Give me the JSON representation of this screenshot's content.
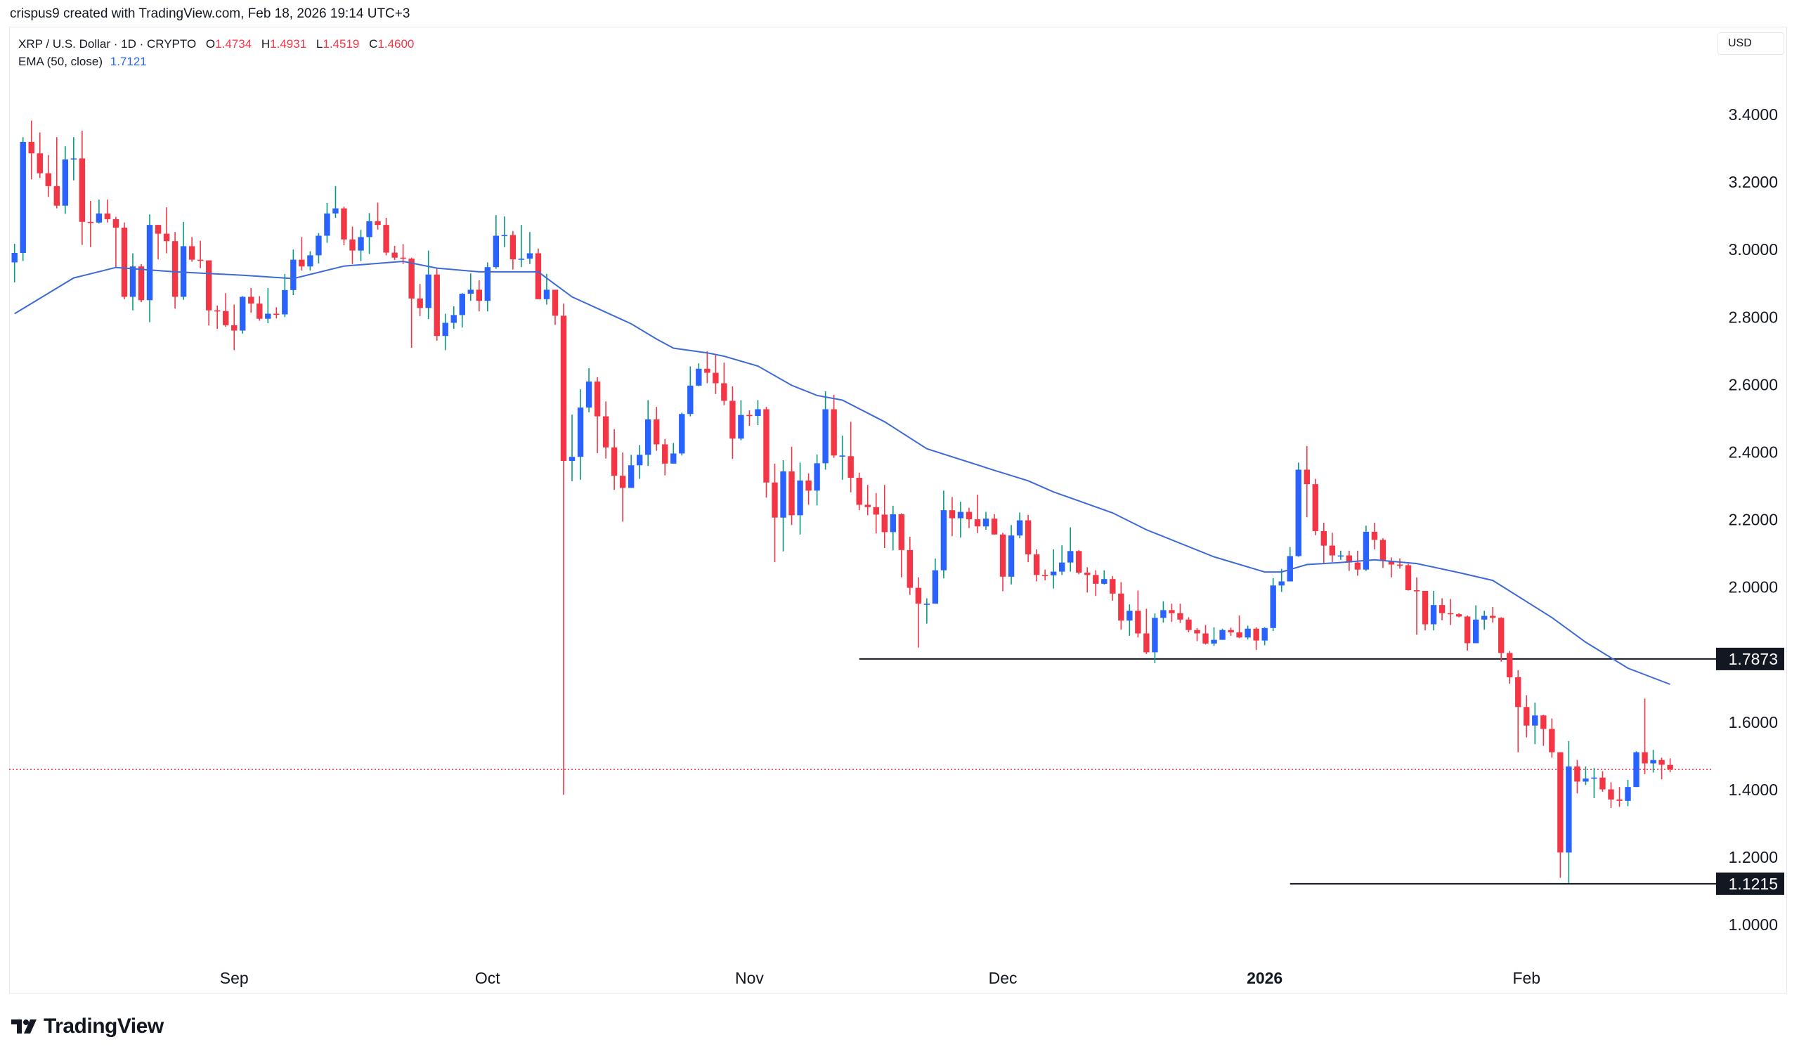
{
  "credit": "crispus9 created with TradingView.com, Feb 18, 2026 19:14 UTC+3",
  "legend": {
    "symbol": "XRP / U.S. Dollar · 1D · CRYPTO",
    "o_label": "O",
    "o": "1.4734",
    "h_label": "H",
    "h": "1.4931",
    "l_label": "L",
    "l": "1.4519",
    "c_label": "C",
    "c": "1.4600",
    "ema_label": "EMA (50, close)",
    "ema_value": "1.7121"
  },
  "currency": "USD",
  "logo_text": "TradingView",
  "colors": {
    "up_body": "#2962ff",
    "up_wick": "#089981",
    "down": "#f23645",
    "ema": "#3d6ad6",
    "level_line": "#131722",
    "last_price": "#f23645"
  },
  "chart_data": {
    "type": "candlestick",
    "interval": "1D",
    "first_date": "2025-08-06",
    "ylim": [
      0.92,
      3.55
    ],
    "y_ticks": [
      "3.4000",
      "3.2000",
      "3.0000",
      "2.8000",
      "2.6000",
      "2.4000",
      "2.2000",
      "2.0000",
      "1.6000",
      "1.4000",
      "1.2000",
      "1.0000"
    ],
    "x_ticks": [
      {
        "label": "Sep",
        "date": "2025-09-01",
        "bold": false
      },
      {
        "label": "Oct",
        "date": "2025-10-01",
        "bold": false
      },
      {
        "label": "Nov",
        "date": "2025-11-01",
        "bold": false
      },
      {
        "label": "Dec",
        "date": "2025-12-01",
        "bold": false
      },
      {
        "label": "2026",
        "date": "2026-01-01",
        "bold": true
      },
      {
        "label": "Feb",
        "date": "2026-02-01",
        "bold": false
      }
    ],
    "ohlc_fields": [
      "open",
      "high",
      "low",
      "close"
    ],
    "candles": [
      [
        2.962,
        3.017,
        2.903,
        2.99
      ],
      [
        2.99,
        3.333,
        2.966,
        3.319
      ],
      [
        3.319,
        3.382,
        3.208,
        3.285
      ],
      [
        3.285,
        3.347,
        3.212,
        3.226
      ],
      [
        3.226,
        3.28,
        3.156,
        3.188
      ],
      [
        3.188,
        3.333,
        3.122,
        3.13
      ],
      [
        3.13,
        3.306,
        3.106,
        3.267
      ],
      [
        3.267,
        3.333,
        3.205,
        3.27
      ],
      [
        3.27,
        3.352,
        3.014,
        3.082
      ],
      [
        3.082,
        3.144,
        3.007,
        3.08
      ],
      [
        3.08,
        3.148,
        3.077,
        3.107
      ],
      [
        3.107,
        3.148,
        3.08,
        3.09
      ],
      [
        3.09,
        3.097,
        2.948,
        3.065
      ],
      [
        3.065,
        3.08,
        2.853,
        2.86
      ],
      [
        2.86,
        2.989,
        2.82,
        2.95
      ],
      [
        2.95,
        2.957,
        2.844,
        2.85
      ],
      [
        2.85,
        3.104,
        2.785,
        3.073
      ],
      [
        3.073,
        3.073,
        2.971,
        3.047
      ],
      [
        3.047,
        3.125,
        2.989,
        3.025
      ],
      [
        3.025,
        3.052,
        2.825,
        2.86
      ],
      [
        2.86,
        3.082,
        2.851,
        3.01
      ],
      [
        3.01,
        3.037,
        2.964,
        2.97
      ],
      [
        2.97,
        3.026,
        2.945,
        2.968
      ],
      [
        2.968,
        2.968,
        2.775,
        2.82
      ],
      [
        2.82,
        2.834,
        2.765,
        2.818
      ],
      [
        2.818,
        2.871,
        2.771,
        2.776
      ],
      [
        2.776,
        2.837,
        2.702,
        2.76
      ],
      [
        2.76,
        2.862,
        2.751,
        2.86
      ],
      [
        2.86,
        2.886,
        2.813,
        2.84
      ],
      [
        2.84,
        2.862,
        2.789,
        2.795
      ],
      [
        2.795,
        2.886,
        2.782,
        2.81
      ],
      [
        2.81,
        2.829,
        2.796,
        2.808
      ],
      [
        2.808,
        2.928,
        2.8,
        2.88
      ],
      [
        2.88,
        3.0,
        2.865,
        2.97
      ],
      [
        2.97,
        3.037,
        2.938,
        2.95
      ],
      [
        2.95,
        2.995,
        2.938,
        2.983
      ],
      [
        2.983,
        3.049,
        2.959,
        3.041
      ],
      [
        3.041,
        3.138,
        3.02,
        3.107
      ],
      [
        3.107,
        3.188,
        3.094,
        3.122
      ],
      [
        3.122,
        3.127,
        3.013,
        3.03
      ],
      [
        3.03,
        3.068,
        2.957,
        2.997
      ],
      [
        2.997,
        3.058,
        2.966,
        3.037
      ],
      [
        3.037,
        3.108,
        2.987,
        3.084
      ],
      [
        3.084,
        3.139,
        3.059,
        3.073
      ],
      [
        3.073,
        3.094,
        2.983,
        2.991
      ],
      [
        2.991,
        3.011,
        2.969,
        2.976
      ],
      [
        2.976,
        3.016,
        2.957,
        2.973
      ],
      [
        2.973,
        2.976,
        2.709,
        2.855
      ],
      [
        2.855,
        2.898,
        2.803,
        2.827
      ],
      [
        2.827,
        2.997,
        2.794,
        2.926
      ],
      [
        2.926,
        2.945,
        2.73,
        2.744
      ],
      [
        2.744,
        2.81,
        2.702,
        2.783
      ],
      [
        2.783,
        2.832,
        2.765,
        2.806
      ],
      [
        2.806,
        2.871,
        2.769,
        2.869
      ],
      [
        2.869,
        2.929,
        2.848,
        2.881
      ],
      [
        2.881,
        2.909,
        2.817,
        2.848
      ],
      [
        2.848,
        2.962,
        2.817,
        2.948
      ],
      [
        2.948,
        3.102,
        2.943,
        3.041
      ],
      [
        3.041,
        3.098,
        3.007,
        3.043
      ],
      [
        3.043,
        3.055,
        2.941,
        2.971
      ],
      [
        2.971,
        3.073,
        2.948,
        2.973
      ],
      [
        2.973,
        3.052,
        2.957,
        2.989
      ],
      [
        2.989,
        3.003,
        2.853,
        2.853
      ],
      [
        2.853,
        2.928,
        2.837,
        2.881
      ],
      [
        2.881,
        2.881,
        2.777,
        2.804
      ],
      [
        2.804,
        2.84,
        1.385,
        2.374
      ],
      [
        2.374,
        2.511,
        2.314,
        2.386
      ],
      [
        2.386,
        2.586,
        2.318,
        2.532
      ],
      [
        2.532,
        2.649,
        2.518,
        2.609
      ],
      [
        2.609,
        2.622,
        2.397,
        2.506
      ],
      [
        2.506,
        2.55,
        2.381,
        2.414
      ],
      [
        2.414,
        2.468,
        2.288,
        2.33
      ],
      [
        2.33,
        2.399,
        2.194,
        2.294
      ],
      [
        2.294,
        2.392,
        2.294,
        2.361
      ],
      [
        2.361,
        2.421,
        2.321,
        2.392
      ],
      [
        2.392,
        2.554,
        2.359,
        2.497
      ],
      [
        2.497,
        2.534,
        2.404,
        2.423
      ],
      [
        2.423,
        2.439,
        2.331,
        2.366
      ],
      [
        2.366,
        2.427,
        2.366,
        2.396
      ],
      [
        2.396,
        2.517,
        2.39,
        2.513
      ],
      [
        2.513,
        2.654,
        2.506,
        2.597
      ],
      [
        2.597,
        2.663,
        2.595,
        2.647
      ],
      [
        2.647,
        2.699,
        2.604,
        2.635
      ],
      [
        2.635,
        2.688,
        2.572,
        2.604
      ],
      [
        2.604,
        2.665,
        2.539,
        2.552
      ],
      [
        2.552,
        2.595,
        2.38,
        2.44
      ],
      [
        2.44,
        2.554,
        2.435,
        2.51
      ],
      [
        2.51,
        2.524,
        2.478,
        2.507
      ],
      [
        2.507,
        2.554,
        2.48,
        2.527
      ],
      [
        2.527,
        2.534,
        2.265,
        2.31
      ],
      [
        2.31,
        2.366,
        2.074,
        2.206
      ],
      [
        2.206,
        2.376,
        2.106,
        2.343
      ],
      [
        2.343,
        2.416,
        2.184,
        2.213
      ],
      [
        2.213,
        2.369,
        2.156,
        2.316
      ],
      [
        2.316,
        2.337,
        2.244,
        2.286
      ],
      [
        2.286,
        2.393,
        2.242,
        2.367
      ],
      [
        2.367,
        2.58,
        2.348,
        2.527
      ],
      [
        2.527,
        2.57,
        2.383,
        2.39
      ],
      [
        2.39,
        2.449,
        2.318,
        2.39
      ],
      [
        2.388,
        2.49,
        2.281,
        2.324
      ],
      [
        2.324,
        2.339,
        2.228,
        2.244
      ],
      [
        2.244,
        2.303,
        2.213,
        2.237
      ],
      [
        2.237,
        2.279,
        2.159,
        2.215
      ],
      [
        2.215,
        2.303,
        2.116,
        2.163
      ],
      [
        2.163,
        2.241,
        2.109,
        2.216
      ],
      [
        2.216,
        2.219,
        2.029,
        2.11
      ],
      [
        2.11,
        2.149,
        1.977,
        1.998
      ],
      [
        1.998,
        2.029,
        1.821,
        1.951
      ],
      [
        1.951,
        1.967,
        1.892,
        1.951
      ],
      [
        1.951,
        2.085,
        1.951,
        2.05
      ],
      [
        2.05,
        2.286,
        2.026,
        2.228
      ],
      [
        2.228,
        2.267,
        2.151,
        2.204
      ],
      [
        2.204,
        2.253,
        2.147,
        2.223
      ],
      [
        2.223,
        2.235,
        2.175,
        2.201
      ],
      [
        2.201,
        2.274,
        2.16,
        2.18
      ],
      [
        2.18,
        2.223,
        2.17,
        2.203
      ],
      [
        2.203,
        2.216,
        2.156,
        2.156
      ],
      [
        2.156,
        2.161,
        1.988,
        2.031
      ],
      [
        2.031,
        2.184,
        2.008,
        2.153
      ],
      [
        2.153,
        2.221,
        2.145,
        2.198
      ],
      [
        2.198,
        2.214,
        2.074,
        2.097
      ],
      [
        2.097,
        2.112,
        2.017,
        2.036
      ],
      [
        2.036,
        2.052,
        2.02,
        2.035
      ],
      [
        2.035,
        2.112,
        1.996,
        2.046
      ],
      [
        2.046,
        2.124,
        2.036,
        2.073
      ],
      [
        2.073,
        2.177,
        2.046,
        2.107
      ],
      [
        2.107,
        2.11,
        2.038,
        2.043
      ],
      [
        2.043,
        2.059,
        1.984,
        2.036
      ],
      [
        2.036,
        2.05,
        1.974,
        2.01
      ],
      [
        2.01,
        2.05,
        2.008,
        2.024
      ],
      [
        2.024,
        2.033,
        1.96,
        1.981
      ],
      [
        1.981,
        2.015,
        1.874,
        1.901
      ],
      [
        1.901,
        1.949,
        1.856,
        1.93
      ],
      [
        1.93,
        1.99,
        1.851,
        1.863
      ],
      [
        1.863,
        1.936,
        1.802,
        1.807
      ],
      [
        1.807,
        1.922,
        1.775,
        1.909
      ],
      [
        1.909,
        1.958,
        1.895,
        1.932
      ],
      [
        1.932,
        1.951,
        1.897,
        1.923
      ],
      [
        1.923,
        1.951,
        1.894,
        1.904
      ],
      [
        1.904,
        1.911,
        1.866,
        1.873
      ],
      [
        1.873,
        1.879,
        1.84,
        1.863
      ],
      [
        1.863,
        1.888,
        1.83,
        1.833
      ],
      [
        1.833,
        1.881,
        1.826,
        1.844
      ],
      [
        1.844,
        1.877,
        1.844,
        1.873
      ],
      [
        1.873,
        1.88,
        1.856,
        1.866
      ],
      [
        1.866,
        1.916,
        1.849,
        1.851
      ],
      [
        1.851,
        1.886,
        1.845,
        1.877
      ],
      [
        1.877,
        1.881,
        1.814,
        1.842
      ],
      [
        1.842,
        1.881,
        1.828,
        1.879
      ],
      [
        1.879,
        2.027,
        1.87,
        2.005
      ],
      [
        2.005,
        2.054,
        1.986,
        2.017
      ],
      [
        2.017,
        2.119,
        2.017,
        2.092
      ],
      [
        2.092,
        2.369,
        2.09,
        2.348
      ],
      [
        2.348,
        2.418,
        2.207,
        2.305
      ],
      [
        2.305,
        2.321,
        2.154,
        2.166
      ],
      [
        2.166,
        2.191,
        2.069,
        2.123
      ],
      [
        2.123,
        2.161,
        2.074,
        2.094
      ],
      [
        2.094,
        2.108,
        2.081,
        2.094
      ],
      [
        2.094,
        2.108,
        2.048,
        2.073
      ],
      [
        2.073,
        2.108,
        2.034,
        2.052
      ],
      [
        2.052,
        2.182,
        2.048,
        2.164
      ],
      [
        2.164,
        2.191,
        2.112,
        2.14
      ],
      [
        2.14,
        2.145,
        2.057,
        2.078
      ],
      [
        2.078,
        2.088,
        2.029,
        2.067
      ],
      [
        2.067,
        2.085,
        2.055,
        2.065
      ],
      [
        2.065,
        2.069,
        1.99,
        1.991
      ],
      [
        1.991,
        2.029,
        1.859,
        1.989
      ],
      [
        1.989,
        1.989,
        1.872,
        1.89
      ],
      [
        1.89,
        1.989,
        1.872,
        1.947
      ],
      [
        1.947,
        1.967,
        1.902,
        1.923
      ],
      [
        1.923,
        1.965,
        1.888,
        1.92
      ],
      [
        1.92,
        1.923,
        1.911,
        1.913
      ],
      [
        1.913,
        1.916,
        1.812,
        1.834
      ],
      [
        1.834,
        1.946,
        1.834,
        1.904
      ],
      [
        1.904,
        1.93,
        1.874,
        1.915
      ],
      [
        1.915,
        1.941,
        1.895,
        1.909
      ],
      [
        1.909,
        1.911,
        1.779,
        1.805
      ],
      [
        1.805,
        1.811,
        1.714,
        1.733
      ],
      [
        1.733,
        1.754,
        1.511,
        1.645
      ],
      [
        1.645,
        1.68,
        1.555,
        1.59
      ],
      [
        1.59,
        1.658,
        1.535,
        1.62
      ],
      [
        1.62,
        1.622,
        1.53,
        1.58
      ],
      [
        1.58,
        1.611,
        1.495,
        1.511
      ],
      [
        1.511,
        1.511,
        1.139,
        1.214
      ],
      [
        1.214,
        1.544,
        1.124,
        1.469
      ],
      [
        1.469,
        1.488,
        1.389,
        1.424
      ],
      [
        1.424,
        1.469,
        1.414,
        1.433
      ],
      [
        1.433,
        1.464,
        1.375,
        1.436
      ],
      [
        1.436,
        1.455,
        1.394,
        1.401
      ],
      [
        1.401,
        1.422,
        1.346,
        1.371
      ],
      [
        1.371,
        1.408,
        1.349,
        1.367
      ],
      [
        1.367,
        1.429,
        1.351,
        1.408
      ],
      [
        1.408,
        1.514,
        1.408,
        1.511
      ],
      [
        1.511,
        1.67,
        1.446,
        1.478
      ],
      [
        1.478,
        1.518,
        1.451,
        1.488
      ],
      [
        1.488,
        1.495,
        1.431,
        1.474
      ],
      [
        1.4734,
        1.4931,
        1.4519,
        1.46
      ]
    ],
    "ema50": [
      [
        "2025-08-06",
        2.81
      ],
      [
        "2025-08-13",
        2.916
      ],
      [
        "2025-08-18",
        2.947
      ],
      [
        "2025-08-25",
        2.934
      ],
      [
        "2025-09-02",
        2.924
      ],
      [
        "2025-09-08",
        2.914
      ],
      [
        "2025-09-14",
        2.951
      ],
      [
        "2025-09-21",
        2.965
      ],
      [
        "2025-09-25",
        2.945
      ],
      [
        "2025-09-30",
        2.934
      ],
      [
        "2025-10-07",
        2.934
      ],
      [
        "2025-10-11",
        2.86
      ],
      [
        "2025-10-18",
        2.78
      ],
      [
        "2025-10-21",
        2.735
      ],
      [
        "2025-10-23",
        2.708
      ],
      [
        "2025-10-27",
        2.694
      ],
      [
        "2025-10-29",
        2.684
      ],
      [
        "2025-11-02",
        2.655
      ],
      [
        "2025-11-06",
        2.598
      ],
      [
        "2025-11-09",
        2.568
      ],
      [
        "2025-11-12",
        2.554
      ],
      [
        "2025-11-17",
        2.49
      ],
      [
        "2025-11-22",
        2.41
      ],
      [
        "2025-11-30",
        2.346
      ],
      [
        "2025-12-04",
        2.315
      ],
      [
        "2025-12-07",
        2.282
      ],
      [
        "2025-12-14",
        2.22
      ],
      [
        "2025-12-18",
        2.17
      ],
      [
        "2025-12-26",
        2.09
      ],
      [
        "2026-01-01",
        2.045
      ],
      [
        "2026-01-03",
        2.045
      ],
      [
        "2026-01-06",
        2.067
      ],
      [
        "2026-01-10",
        2.073
      ],
      [
        "2026-01-14",
        2.081
      ],
      [
        "2026-01-19",
        2.07
      ],
      [
        "2026-01-24",
        2.043
      ],
      [
        "2026-01-28",
        2.02
      ],
      [
        "2026-02-04",
        1.91
      ],
      [
        "2026-02-08",
        1.837
      ],
      [
        "2026-02-13",
        1.76
      ],
      [
        "2026-02-18",
        1.7121
      ]
    ],
    "levels": [
      {
        "price": 1.7873,
        "label": "1.7873",
        "from_date": "2025-11-14"
      },
      {
        "price": 1.1215,
        "label": "1.1215",
        "from_date": "2026-01-04"
      }
    ],
    "last_price": 1.46
  }
}
